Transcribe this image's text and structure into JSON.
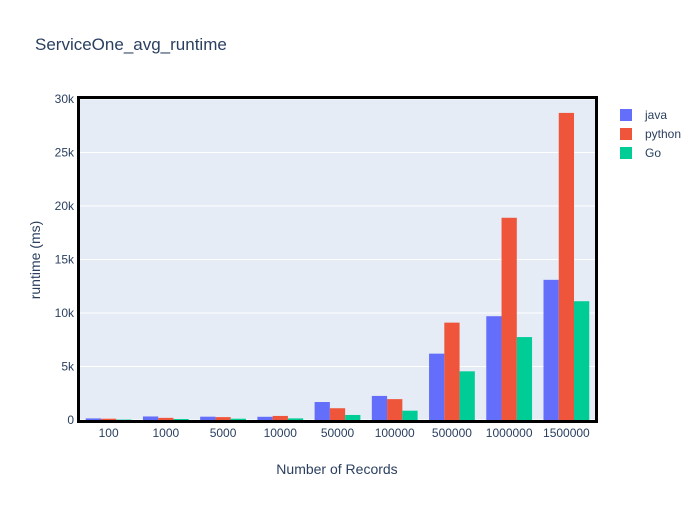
{
  "chart_data": {
    "type": "bar",
    "title": "ServiceOne_avg_runtime",
    "xlabel": "Number of Records",
    "ylabel": "runtime (ms)",
    "categories": [
      "100",
      "1000",
      "5000",
      "10000",
      "50000",
      "100000",
      "500000",
      "1000000",
      "1500000"
    ],
    "series": [
      {
        "name": "java",
        "color": "#636efa",
        "values": [
          150,
          330,
          310,
          300,
          1680,
          2250,
          6200,
          9700,
          13100
        ]
      },
      {
        "name": "python",
        "color": "#ef553b",
        "values": [
          120,
          200,
          270,
          380,
          1100,
          1950,
          9100,
          18900,
          28700
        ]
      },
      {
        "name": "Go",
        "color": "#00cc96",
        "values": [
          40,
          90,
          120,
          150,
          470,
          870,
          4550,
          7750,
          11100
        ]
      }
    ],
    "ylim": [
      0,
      30000
    ],
    "yticks": [
      0,
      5000,
      10000,
      15000,
      20000,
      25000,
      30000
    ],
    "ytick_labels": [
      "0",
      "5k",
      "10k",
      "15k",
      "20k",
      "25k",
      "30k"
    ],
    "grid": true,
    "legend_position": "top-right",
    "plot_background": "#e5ecf6"
  }
}
